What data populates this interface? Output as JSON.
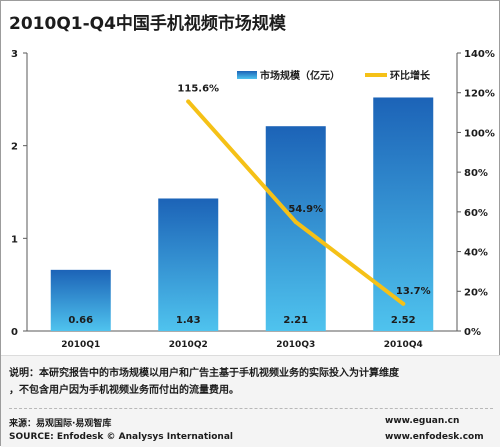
{
  "title": "2010Q1-Q4中国手机视频市场规模",
  "chart_data": {
    "type": "bar",
    "categories": [
      "2010Q1",
      "2010Q2",
      "2010Q3",
      "2010Q4"
    ],
    "series": [
      {
        "name": "市场规模（亿元）",
        "type": "bar",
        "axis": "left",
        "values": [
          0.66,
          1.43,
          2.21,
          2.52
        ],
        "labels": [
          "0.66",
          "1.43",
          "2.21",
          "2.52"
        ]
      },
      {
        "name": "环比增长",
        "type": "line",
        "axis": "right",
        "values": [
          null,
          115.6,
          54.9,
          13.7
        ],
        "labels": [
          "",
          "115.6%",
          "54.9%",
          "13.7%"
        ]
      }
    ],
    "y_left": {
      "min": 0,
      "max": 3,
      "ticks": [
        "0",
        "1",
        "2",
        "3"
      ]
    },
    "y_right": {
      "min": 0,
      "max": 140,
      "ticks": [
        "0%",
        "20%",
        "40%",
        "60%",
        "80%",
        "100%",
        "120%",
        "140%"
      ]
    },
    "legend_position": "top-right",
    "colors": {
      "bar_top": "#1c63b7",
      "bar_bottom": "#4fc3ee",
      "line": "#f5c117",
      "axis": "#5a5a5a"
    }
  },
  "notes": {
    "line1": "说明：本研究报告中的市场规模以用户和广告主基于手机视频业务的实际投入为计算维度",
    "line2": "，不包含用户因为手机视频业务而付出的流量费用。"
  },
  "source": {
    "cn": "来源：易观国际·易观智库",
    "en": "SOURCE: Enfodesk © Analysys International",
    "url1": "www.eguan.cn",
    "url2": "www.enfodesk.com"
  }
}
